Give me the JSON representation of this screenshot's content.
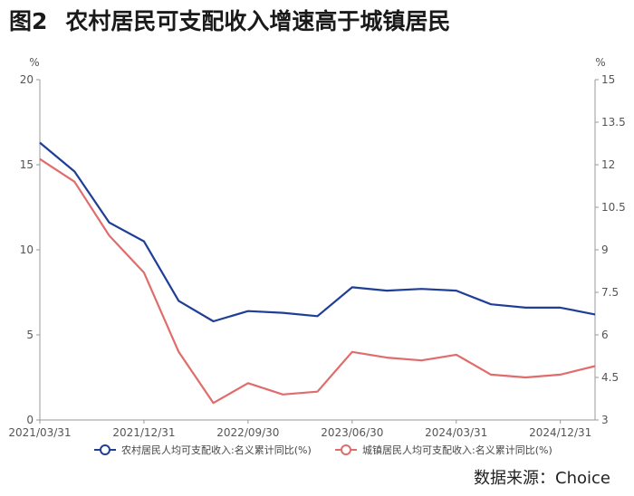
{
  "header": {
    "fig_no": "图2",
    "title": "农村居民可支配收入增速高于城镇居民"
  },
  "source": "数据来源：Choice",
  "chart_data": {
    "type": "line",
    "title": "农村居民可支配收入增速高于城镇居民",
    "x": [
      "2021/03/31",
      "2021/06/30",
      "2021/09/30",
      "2021/12/31",
      "2022/03/31",
      "2022/06/30",
      "2022/09/30",
      "2022/12/31",
      "2023/03/31",
      "2023/06/30",
      "2023/09/30",
      "2023/12/31",
      "2024/03/31",
      "2024/06/30",
      "2024/09/30",
      "2024/12/31",
      "2025/03/31"
    ],
    "x_tick_labels": [
      "2021/03/31",
      "2021/12/31",
      "2022/09/30",
      "2023/06/30",
      "2024/03/31",
      "2024/12/31"
    ],
    "y_left": {
      "unit": "%",
      "lim": [
        0,
        20
      ],
      "ticks": [
        0,
        5,
        10,
        15,
        20
      ]
    },
    "y_right": {
      "unit": "%",
      "lim": [
        3,
        15
      ],
      "ticks": [
        "3",
        "4.5",
        "6",
        "7.5",
        "9",
        "10.5",
        "12",
        "13.5",
        "15"
      ]
    },
    "series": [
      {
        "name": "农村居民人均可支配收入:名义累计同比(%)",
        "axis": "left",
        "color": "#1f3e96",
        "values": [
          16.3,
          14.6,
          11.6,
          10.5,
          7.0,
          5.8,
          6.4,
          6.3,
          6.1,
          7.8,
          7.6,
          7.7,
          7.6,
          6.8,
          6.6,
          6.6,
          6.2
        ]
      },
      {
        "name": "城镇居民人均可支配收入:名义累计同比(%)",
        "axis": "right",
        "color": "#e06c6c",
        "values": [
          12.2,
          11.4,
          9.5,
          8.2,
          5.4,
          3.6,
          4.3,
          3.9,
          4.0,
          5.4,
          5.2,
          5.1,
          5.3,
          4.6,
          4.5,
          4.6,
          4.9
        ]
      }
    ],
    "grid": false,
    "legend_position": "bottom"
  }
}
